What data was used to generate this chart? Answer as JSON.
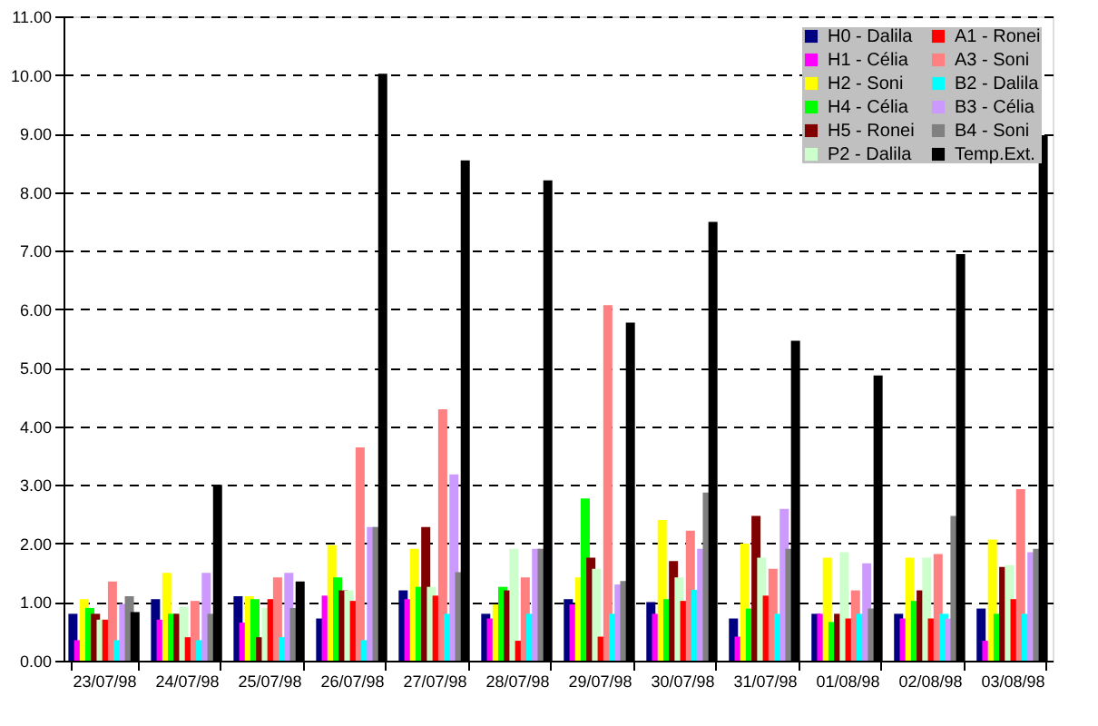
{
  "chart_data": {
    "type": "bar",
    "categories": [
      "23/07/98",
      "24/07/98",
      "25/07/98",
      "26/07/98",
      "27/07/98",
      "28/07/98",
      "29/07/98",
      "30/07/98",
      "31/07/98",
      "01/08/98",
      "02/08/98",
      "03/08/98"
    ],
    "series": [
      {
        "name": "H0 - Dalila",
        "color": "#000080",
        "values": [
          0.8,
          1.05,
          1.1,
          0.72,
          1.2,
          0.8,
          1.05,
          1.0,
          0.72,
          0.8,
          0.8,
          0.89
        ]
      },
      {
        "name": "H1 - Célia",
        "color": "#ff00ff",
        "values": [
          0.35,
          0.7,
          0.65,
          1.11,
          1.05,
          0.72,
          0.96,
          0.8,
          0.41,
          0.8,
          0.72,
          0.34
        ]
      },
      {
        "name": "H2 - Soni",
        "color": "#ffff00",
        "values": [
          1.05,
          1.5,
          1.1,
          1.97,
          1.91,
          0.96,
          1.42,
          2.4,
          2.0,
          1.76,
          1.76,
          2.07
        ]
      },
      {
        "name": "H4 - Célia",
        "color": "#00ff00",
        "values": [
          0.9,
          0.8,
          1.05,
          1.42,
          1.26,
          1.26,
          2.77,
          1.05,
          0.89,
          0.66,
          1.02,
          0.8
        ]
      },
      {
        "name": "H5 - Ronei",
        "color": "#800000",
        "values": [
          0.8,
          0.8,
          0.4,
          1.2,
          2.28,
          1.2,
          1.76,
          1.7,
          2.47,
          0.8,
          1.2,
          1.6
        ]
      },
      {
        "name": "P2 - Dalila",
        "color": "#ccffcc",
        "values": [
          0.7,
          0.92,
          0.9,
          1.2,
          1.26,
          1.91,
          1.57,
          1.42,
          1.76,
          1.85,
          1.76,
          1.63
        ]
      },
      {
        "name": "A1 - Ronei",
        "color": "#ff0000",
        "values": [
          0.7,
          0.4,
          1.05,
          1.02,
          1.11,
          0.34,
          0.41,
          1.02,
          1.11,
          0.72,
          0.72,
          1.05
        ]
      },
      {
        "name": "A3 - Soni",
        "color": "#ff8080",
        "values": [
          1.35,
          1.02,
          1.42,
          3.64,
          4.29,
          1.42,
          6.07,
          2.22,
          1.57,
          1.2,
          1.82,
          2.93
        ]
      },
      {
        "name": "B2 - Dalila",
        "color": "#00ffff",
        "values": [
          0.35,
          0.35,
          0.4,
          0.35,
          0.8,
          0.8,
          0.8,
          1.21,
          0.8,
          0.8,
          0.8,
          0.8
        ]
      },
      {
        "name": "B3 - Célia",
        "color": "#cc99ff",
        "values": [
          0.97,
          1.5,
          1.5,
          2.28,
          3.18,
          1.91,
          1.3,
          1.91,
          2.59,
          1.66,
          0.72,
          1.85
        ]
      },
      {
        "name": "B4 - Soni",
        "color": "#808080",
        "values": [
          1.1,
          0.8,
          0.9,
          2.28,
          1.51,
          1.91,
          1.36,
          2.87,
          1.91,
          0.89,
          2.47,
          1.91
        ]
      },
      {
        "name": "Temp.Ext.",
        "color": "#000000",
        "values": [
          0.83,
          3.0,
          1.35,
          10.02,
          8.54,
          8.2,
          5.77,
          7.49,
          5.46,
          4.87,
          6.94,
          8.97
        ]
      }
    ],
    "ylim": [
      0,
      11
    ],
    "yticks": [
      {
        "value": 0,
        "label": "0.00"
      },
      {
        "value": 1,
        "label": "1.00"
      },
      {
        "value": 2,
        "label": "2.00"
      },
      {
        "value": 3,
        "label": "3.00"
      },
      {
        "value": 4,
        "label": "4.00"
      },
      {
        "value": 5,
        "label": "5.00"
      },
      {
        "value": 6,
        "label": "6.00"
      },
      {
        "value": 7,
        "label": "7.00"
      },
      {
        "value": 8,
        "label": "8.00"
      },
      {
        "value": 9,
        "label": "9.00"
      },
      {
        "value": 10,
        "label": "10.00"
      },
      {
        "value": 11,
        "label": "11.00"
      }
    ],
    "grid": "y",
    "legend": "top right"
  }
}
